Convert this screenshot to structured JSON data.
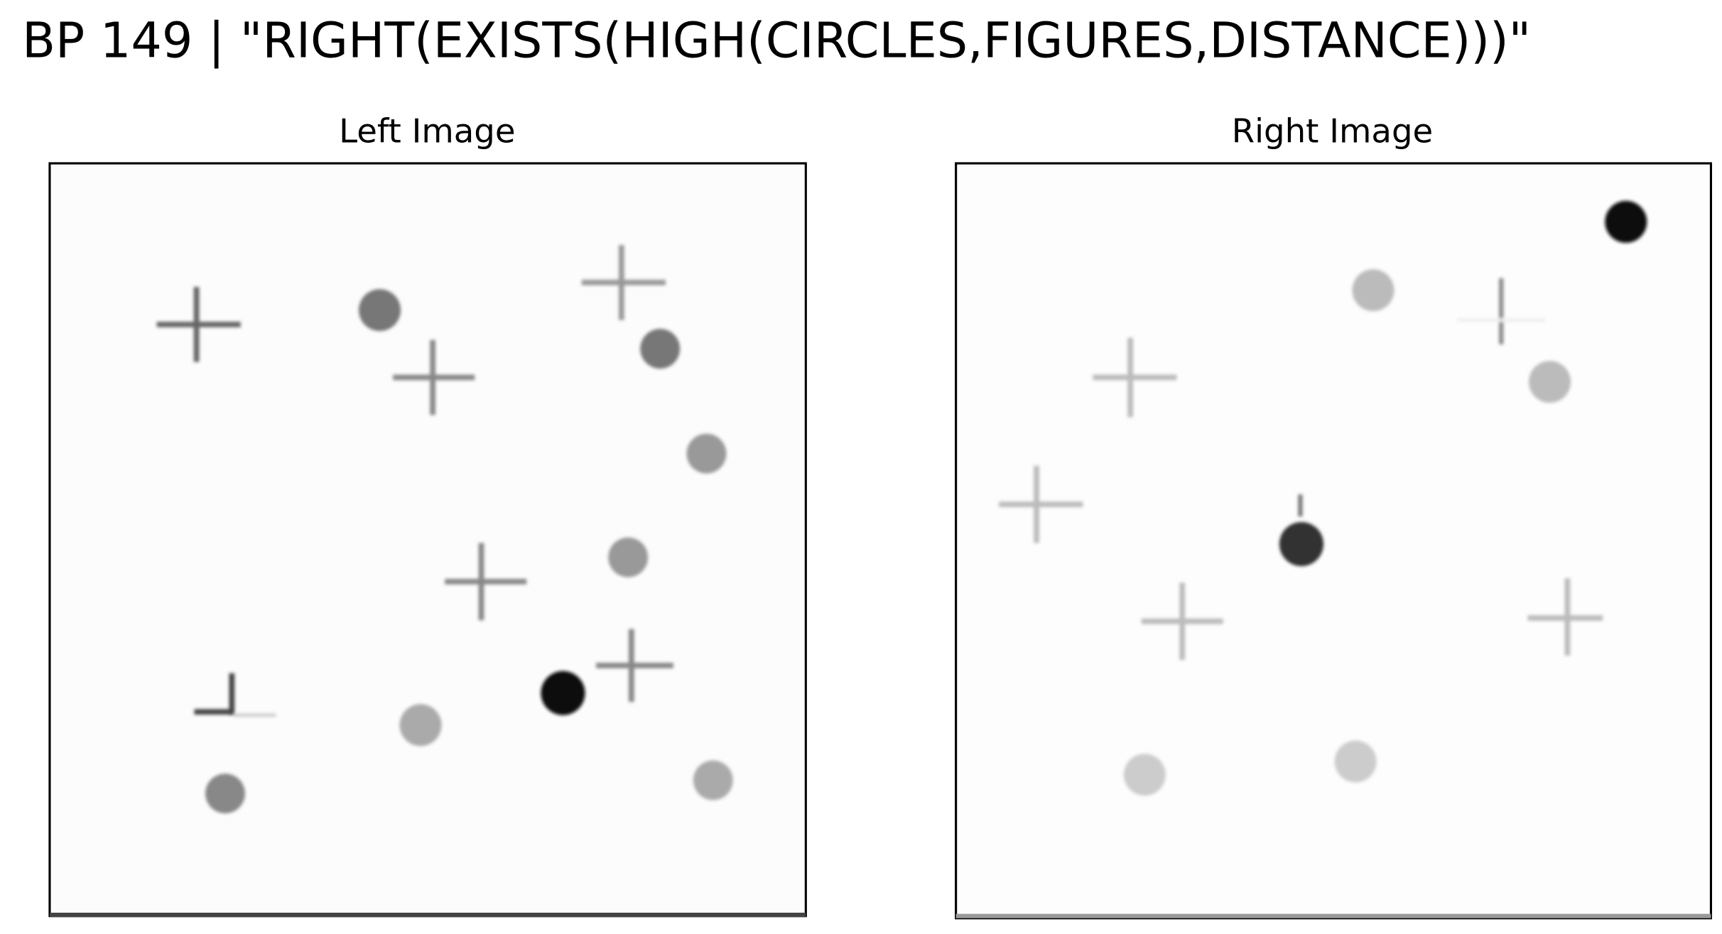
{
  "header": {
    "title": "BP 149 | \"RIGHT(EXISTS(HIGH(CIRCLES,FIGURES,DISTANCE)))\""
  },
  "left_panel": {
    "title": "Left Image"
  },
  "right_panel": {
    "title": "Right Image"
  }
}
